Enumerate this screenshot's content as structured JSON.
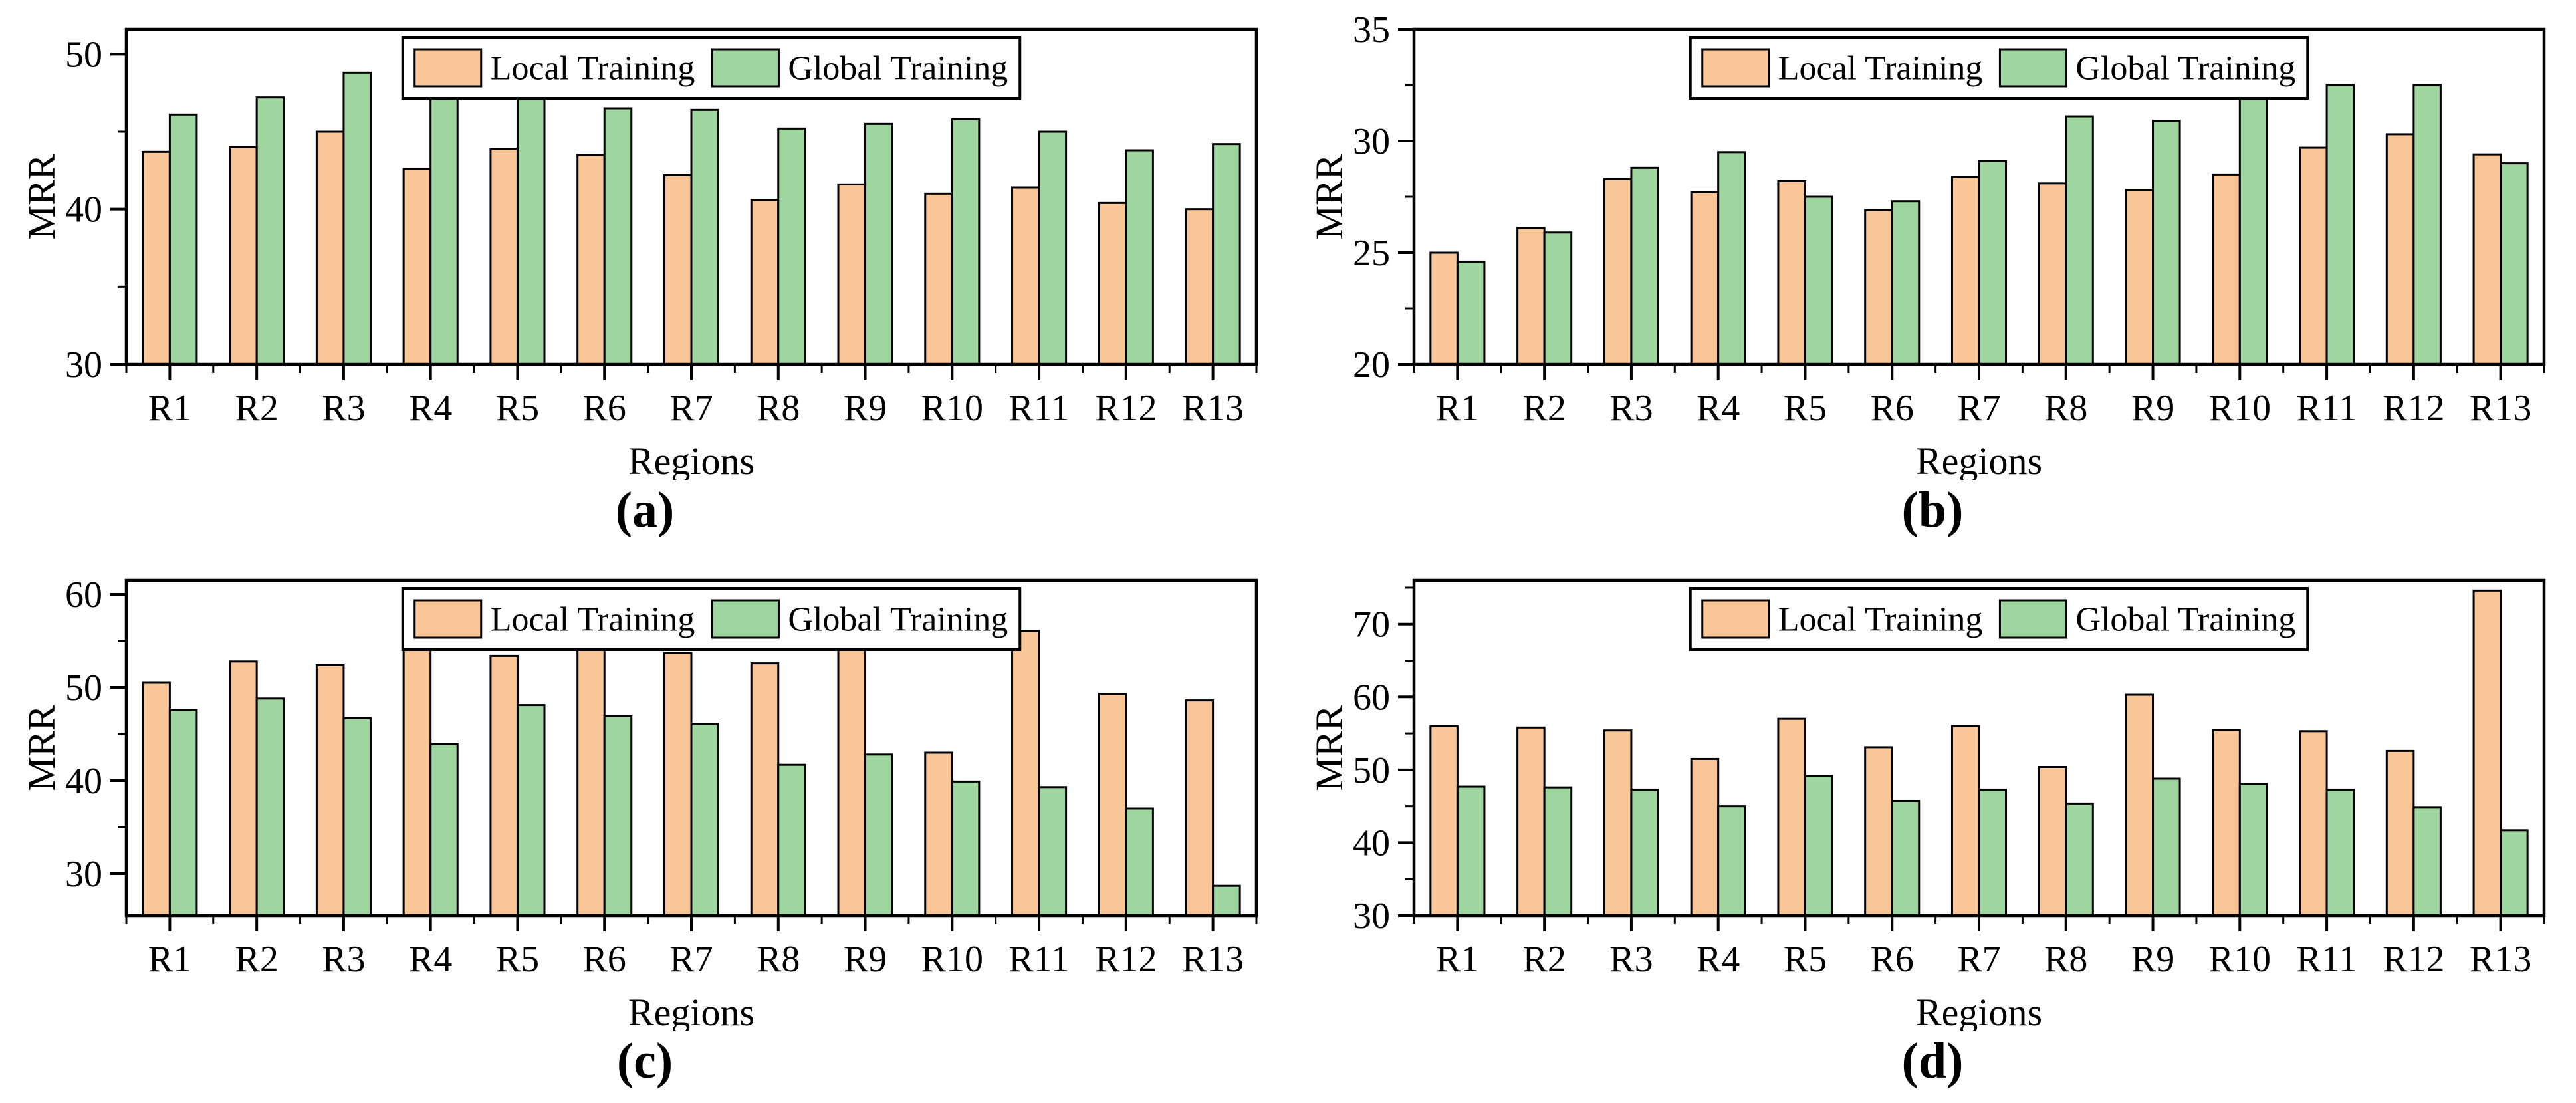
{
  "figure": {
    "background": "#ffffff",
    "ink_color": "#000000",
    "panel_captions": [
      "(a)",
      "(b)",
      "(c)",
      "(d)"
    ]
  },
  "legend": {
    "labels": [
      "Local Training",
      "Global Training"
    ],
    "position": "top-center-inside"
  },
  "colors": {
    "local": "#F9C797",
    "global": "#9FD59E",
    "bar_edge": "#000000"
  },
  "chart_data": [
    {
      "id": "a",
      "type": "bar",
      "caption": "(a)",
      "xlabel": "Regions",
      "ylabel": "MRR",
      "categories": [
        "R1",
        "R2",
        "R3",
        "R4",
        "R5",
        "R6",
        "R7",
        "R8",
        "R9",
        "R10",
        "R11",
        "R12",
        "R13"
      ],
      "ylim": [
        30,
        51.6
      ],
      "yticks": [
        30,
        40,
        50
      ],
      "yticks_minor": [
        35,
        45
      ],
      "grid": false,
      "legend_position": "top-center",
      "series": [
        {
          "name": "Local Training",
          "color": "#F9C797",
          "values": [
            43.7,
            44.0,
            45.0,
            42.6,
            43.9,
            43.5,
            42.2,
            40.6,
            41.6,
            41.0,
            41.4,
            40.4,
            40.0
          ]
        },
        {
          "name": "Global Training",
          "color": "#9FD59E",
          "values": [
            46.1,
            47.2,
            48.8,
            47.4,
            47.3,
            46.5,
            46.4,
            45.2,
            45.5,
            45.8,
            45.0,
            43.8,
            44.2
          ]
        }
      ]
    },
    {
      "id": "b",
      "type": "bar",
      "caption": "(b)",
      "xlabel": "Regions",
      "ylabel": "MRR",
      "categories": [
        "R1",
        "R2",
        "R3",
        "R4",
        "R5",
        "R6",
        "R7",
        "R8",
        "R9",
        "R10",
        "R11",
        "R12",
        "R13"
      ],
      "ylim": [
        20,
        35
      ],
      "yticks": [
        20,
        25,
        30,
        35
      ],
      "yticks_minor": [
        22.5,
        27.5,
        32.5
      ],
      "grid": false,
      "legend_position": "top-center",
      "series": [
        {
          "name": "Local Training",
          "color": "#F9C797",
          "values": [
            25.0,
            26.1,
            28.3,
            27.7,
            28.2,
            26.9,
            28.4,
            28.1,
            27.8,
            28.5,
            29.7,
            30.3,
            29.4
          ]
        },
        {
          "name": "Global Training",
          "color": "#9FD59E",
          "values": [
            24.6,
            25.9,
            28.8,
            29.5,
            27.5,
            27.3,
            29.1,
            31.1,
            30.9,
            34.5,
            32.5,
            32.5,
            29.0
          ]
        }
      ]
    },
    {
      "id": "c",
      "type": "bar",
      "caption": "(c)",
      "xlabel": "Regions",
      "ylabel": "MRR",
      "categories": [
        "R1",
        "R2",
        "R3",
        "R4",
        "R5",
        "R6",
        "R7",
        "R8",
        "R9",
        "R10",
        "R11",
        "R12",
        "R13"
      ],
      "ylim": [
        25.5,
        61.5
      ],
      "yticks": [
        30,
        40,
        50,
        60
      ],
      "yticks_minor": [
        35,
        45,
        55
      ],
      "grid": false,
      "legend_position": "top-center",
      "series": [
        {
          "name": "Local Training",
          "color": "#F9C797",
          "values": [
            50.5,
            52.8,
            52.4,
            55.1,
            53.4,
            55.2,
            53.7,
            52.6,
            54.8,
            43.0,
            56.1,
            49.3,
            48.6
          ]
        },
        {
          "name": "Global Training",
          "color": "#9FD59E",
          "values": [
            47.6,
            48.8,
            46.7,
            43.9,
            48.1,
            46.9,
            46.1,
            41.7,
            42.8,
            39.9,
            39.3,
            37.0,
            28.7
          ]
        }
      ]
    },
    {
      "id": "d",
      "type": "bar",
      "caption": "(d)",
      "xlabel": "Regions",
      "ylabel": "MRR",
      "categories": [
        "R1",
        "R2",
        "R3",
        "R4",
        "R5",
        "R6",
        "R7",
        "R8",
        "R9",
        "R10",
        "R11",
        "R12",
        "R13"
      ],
      "ylim": [
        30,
        76
      ],
      "yticks": [
        30,
        40,
        50,
        60,
        70
      ],
      "yticks_minor": [
        35,
        45,
        55,
        65,
        75
      ],
      "grid": false,
      "legend_position": "top-center",
      "series": [
        {
          "name": "Local Training",
          "color": "#F9C797",
          "values": [
            56.0,
            55.8,
            55.4,
            51.5,
            57.0,
            53.1,
            56.0,
            50.4,
            60.3,
            55.5,
            55.3,
            52.6,
            74.6
          ]
        },
        {
          "name": "Global Training",
          "color": "#9FD59E",
          "values": [
            47.7,
            47.6,
            47.3,
            45.0,
            49.2,
            45.7,
            47.3,
            45.3,
            48.8,
            48.1,
            47.3,
            44.8,
            41.7
          ]
        }
      ]
    }
  ]
}
